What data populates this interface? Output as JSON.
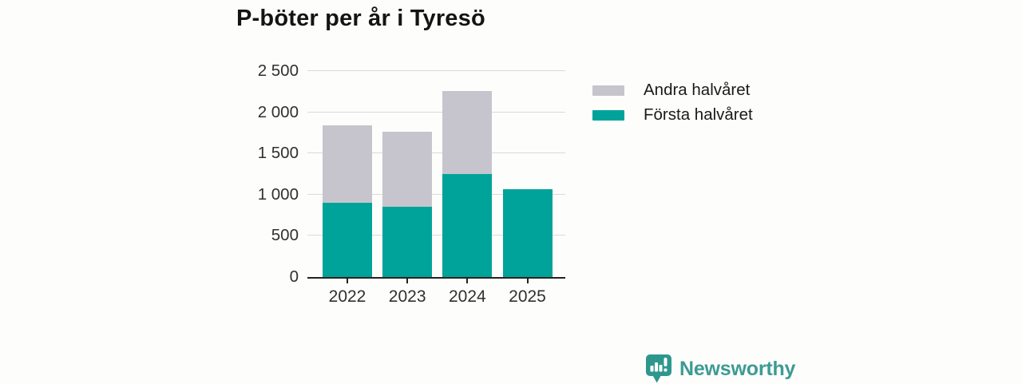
{
  "chart_data": {
    "type": "bar",
    "stacked": true,
    "title": "P-böter per år i Tyresö",
    "categories": [
      "2022",
      "2023",
      "2024",
      "2025"
    ],
    "series": [
      {
        "name": "Första halvåret",
        "color": "#00a39a",
        "values": [
          900,
          850,
          1250,
          1070
        ]
      },
      {
        "name": "Andra halvåret",
        "color": "#c6c5cd",
        "values": [
          940,
          910,
          1010,
          0
        ]
      }
    ],
    "totals": [
      1840,
      1760,
      2260,
      1070
    ],
    "xlabel": "",
    "ylabel": "",
    "ylim": [
      0,
      2500
    ],
    "yticks": [
      0,
      500,
      1000,
      1500,
      2000,
      2500
    ],
    "ytick_labels": [
      "0",
      "500",
      "1 000",
      "1 500",
      "2 000",
      "2 500"
    ],
    "grid": "horizontal",
    "legend_position": "right-top",
    "legend": [
      {
        "label": "Andra halvåret",
        "color": "#c6c5cd"
      },
      {
        "label": "Första halvåret",
        "color": "#00a39a"
      }
    ]
  },
  "colors": {
    "first_half": "#00a39a",
    "second_half": "#c6c5cd",
    "gridline": "#dadada",
    "axis": "#222222",
    "tick_text": "#303030",
    "title_text": "#141414",
    "brand_teal": "#3d9b92",
    "background": "#fdfdfc"
  },
  "branding": {
    "logo_text": "Newsworthy",
    "logo_icon": "newsworthy-bubble-chart-icon"
  }
}
